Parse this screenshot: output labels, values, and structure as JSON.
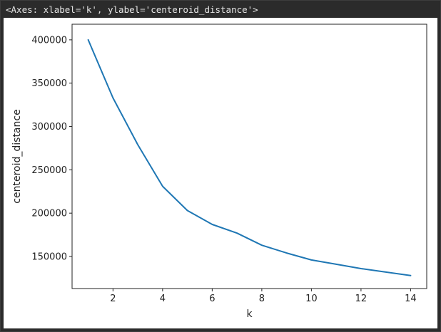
{
  "output_header": "<Axes: xlabel='k', ylabel='centeroid_distance'>",
  "chart_data": {
    "type": "line",
    "xlabel": "k",
    "ylabel": "centeroid_distance",
    "xlim": [
      0.35,
      14.65
    ],
    "ylim": [
      113000,
      418000
    ],
    "xticks": [
      2,
      4,
      6,
      8,
      10,
      12,
      14
    ],
    "yticks": [
      150000,
      200000,
      250000,
      300000,
      350000,
      400000
    ],
    "grid": false,
    "series": [
      {
        "color": "#1f77b4",
        "x": [
          1,
          2,
          3,
          4,
          5,
          6,
          7,
          8,
          9,
          10,
          11,
          12,
          13,
          14
        ],
        "y": [
          400000,
          333000,
          279000,
          231000,
          203000,
          187000,
          177000,
          163000,
          154000,
          146000,
          141000,
          136000,
          132000,
          128000
        ]
      }
    ]
  }
}
